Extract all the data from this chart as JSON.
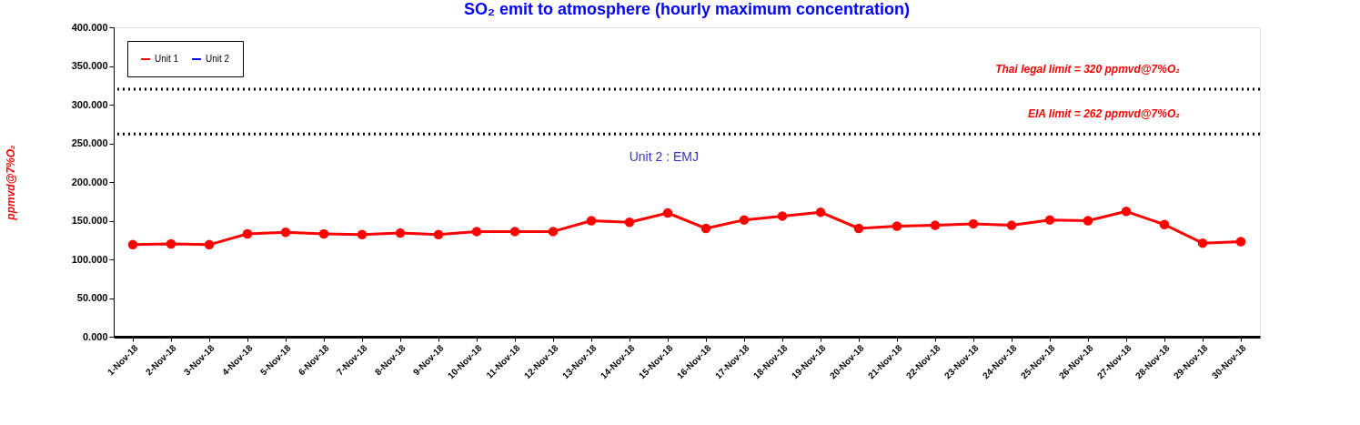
{
  "chart_data": {
    "type": "line",
    "title": "SO₂ emit to atmosphere (hourly maximum concentration)",
    "ylabel": "ppmvd@7%O₂",
    "categories": [
      "1-Nov-18",
      "2-Nov-18",
      "3-Nov-18",
      "4-Nov-18",
      "5-Nov-18",
      "6-Nov-18",
      "7-Nov-18",
      "8-Nov-18",
      "9-Nov-18",
      "10-Nov-18",
      "11-Nov-18",
      "12-Nov-18",
      "13-Nov-18",
      "14-Nov-18",
      "15-Nov-18",
      "16-Nov-18",
      "17-Nov-18",
      "18-Nov-18",
      "19-Nov-18",
      "20-Nov-18",
      "21-Nov-18",
      "22-Nov-18",
      "23-Nov-18",
      "24-Nov-18",
      "25-Nov-18",
      "26-Nov-18",
      "27-Nov-18",
      "28-Nov-18",
      "29-Nov-18",
      "30-Nov-18"
    ],
    "series": [
      {
        "name": "Unit 1",
        "color": "#ff0000",
        "values": [
          119,
          120,
          119,
          133,
          135,
          133,
          132,
          134,
          132,
          136,
          136,
          136,
          150,
          148,
          160,
          140,
          151,
          156,
          161,
          140,
          143,
          144,
          146,
          144,
          151,
          150,
          162,
          145,
          121,
          123
        ]
      },
      {
        "name": "Unit 2",
        "color": "#0000ff",
        "values": [
          null,
          null,
          null,
          null,
          null,
          null,
          null,
          null,
          null,
          null,
          null,
          null,
          null,
          null,
          null,
          null,
          null,
          null,
          null,
          null,
          null,
          null,
          null,
          null,
          null,
          null,
          null,
          null,
          null,
          null
        ]
      }
    ],
    "ylim": [
      0,
      400
    ],
    "yticks": [
      {
        "value": 0,
        "label": "0.000"
      },
      {
        "value": 50,
        "label": "50.000"
      },
      {
        "value": 100,
        "label": "100.000"
      },
      {
        "value": 150,
        "label": "150.000"
      },
      {
        "value": 200,
        "label": "200.000"
      },
      {
        "value": 250,
        "label": "250.000"
      },
      {
        "value": 300,
        "label": "300.000"
      },
      {
        "value": 350,
        "label": "350.000"
      },
      {
        "value": 400,
        "label": "400.000"
      }
    ],
    "ref_lines": [
      {
        "axis": "y",
        "value": 320,
        "label": "Thai legal limit  = 320 ppmvd@7%O₂",
        "color": "#000000",
        "line_style": "dotted"
      },
      {
        "axis": "y",
        "value": 262,
        "label": "EIA limit  = 262 ppmvd@7%O₂",
        "color": "#000000",
        "line_style": "dotted"
      }
    ],
    "annotations": [
      "Unit 2 : EMJ"
    ],
    "grid": false,
    "legend": "top left",
    "marker": "circle",
    "line_style": "solid"
  }
}
